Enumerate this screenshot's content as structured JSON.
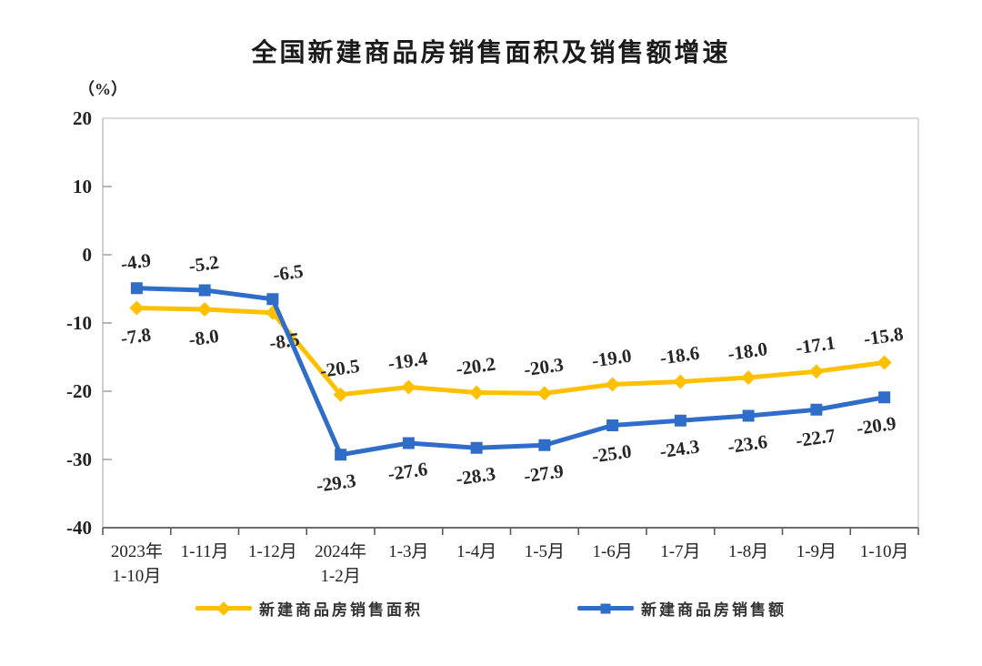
{
  "chart_data": {
    "type": "line",
    "title": "全国新建商品房销售面积及销售额增速",
    "unit_label": "（%）",
    "categories": [
      "2023年\n1-10月",
      "1-11月",
      "1-12月",
      "2024年\n1-2月",
      "1-3月",
      "1-4月",
      "1-5月",
      "1-6月",
      "1-7月",
      "1-8月",
      "1-9月",
      "1-10月"
    ],
    "series": [
      {
        "name": "新建商品房销售面积",
        "color": "#FFC000",
        "marker": "diamond",
        "values": [
          -7.8,
          -8.0,
          -8.5,
          -20.5,
          -19.4,
          -20.2,
          -20.3,
          -19.0,
          -18.6,
          -18.0,
          -17.1,
          -15.8
        ],
        "label_position": [
          "below",
          "below",
          "below",
          "above",
          "above",
          "above",
          "above",
          "above",
          "above",
          "above",
          "above",
          "above"
        ],
        "label_dx": [
          0,
          0,
          14,
          0,
          0,
          0,
          0,
          0,
          0,
          0,
          0,
          0
        ]
      },
      {
        "name": "新建商品房销售额",
        "color": "#2F6DC9",
        "marker": "square",
        "values": [
          -4.9,
          -5.2,
          -6.5,
          -29.3,
          -27.6,
          -28.3,
          -27.9,
          -25.0,
          -24.3,
          -23.6,
          -22.7,
          -20.9
        ],
        "label_position": [
          "above",
          "above",
          "above",
          "below",
          "below",
          "below",
          "below",
          "below",
          "below",
          "below",
          "below",
          "below"
        ],
        "label_dx": [
          0,
          0,
          18,
          -4,
          0,
          0,
          0,
          0,
          0,
          0,
          0,
          -8
        ]
      }
    ],
    "y_ticks": [
      20,
      10,
      0,
      -10,
      -20,
      -30,
      -40
    ],
    "ylim": [
      -40,
      20
    ],
    "grid": false,
    "legend_position": "bottom"
  }
}
